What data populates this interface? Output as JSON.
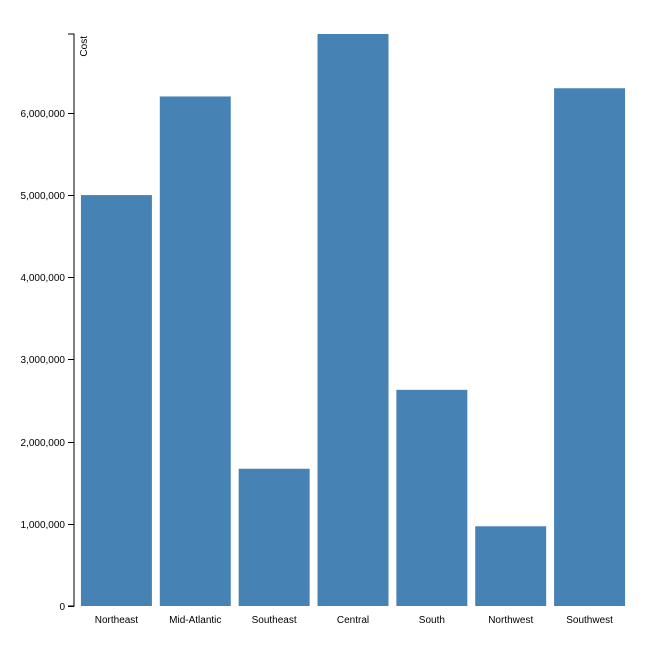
{
  "chart_data": {
    "type": "bar",
    "ylabel": "Cost",
    "xlabel": "",
    "categories": [
      "Northeast",
      "Mid-Atlantic",
      "Southeast",
      "Central",
      "South",
      "Northwest",
      "Southwest"
    ],
    "values": [
      5000000,
      6200000,
      1670000,
      6960000,
      2630000,
      970000,
      6300000
    ],
    "ylim": [
      0,
      6960000
    ],
    "yticks": [
      0,
      1000000,
      2000000,
      3000000,
      4000000,
      5000000,
      6000000
    ],
    "ytick_labels": [
      "0",
      "1,000,000",
      "2,000,000",
      "3,000,000",
      "4,000,000",
      "5,000,000",
      "6,000,000"
    ],
    "bar_color": "#4682b4",
    "grid": false,
    "legend": "none"
  }
}
